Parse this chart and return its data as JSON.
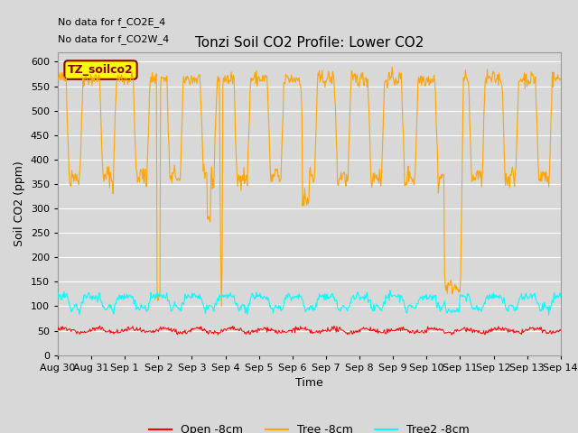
{
  "title": "Tonzi Soil CO2 Profile: Lower CO2",
  "xlabel": "Time",
  "ylabel": "Soil CO2 (ppm)",
  "annotations": [
    "No data for f_CO2E_4",
    "No data for f_CO2W_4"
  ],
  "legend_label": "TZ_soilco2",
  "ylim": [
    0,
    620
  ],
  "yticks": [
    0,
    50,
    100,
    150,
    200,
    250,
    300,
    350,
    400,
    450,
    500,
    550,
    600
  ],
  "xtick_labels": [
    "Aug 30",
    "Aug 31",
    "Sep 1",
    "Sep 2",
    "Sep 3",
    "Sep 4",
    "Sep 5",
    "Sep 6",
    "Sep 7",
    "Sep 8",
    "Sep 9",
    "Sep 10",
    "Sep 11",
    "Sep 12",
    "Sep 13",
    "Sep 14"
  ],
  "series_colors": {
    "open": "#ff0000",
    "tree": "#ffa500",
    "tree2": "#00ffff"
  },
  "series_labels": {
    "open": "Open -8cm",
    "tree": "Tree -8cm",
    "tree2": "Tree2 -8cm"
  },
  "bg_color": "#d8d8d8",
  "plot_bg_color": "#d8d8d8",
  "grid_color": "#ffffff",
  "legend_box_color": "#ffff00",
  "legend_text_color": "#8b0000",
  "n_days": 15,
  "random_seed": 42
}
